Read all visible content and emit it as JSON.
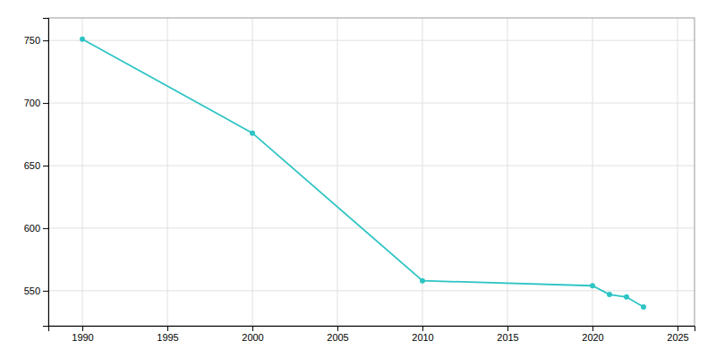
{
  "chart_data": {
    "type": "line",
    "x": [
      1990,
      2000,
      2010,
      2020,
      2021,
      2022,
      2023
    ],
    "values": [
      751,
      676,
      558,
      554,
      547,
      545,
      537
    ],
    "color": "#2EC4C4",
    "marker": "circle",
    "xlim": [
      1988,
      2026
    ],
    "ylim": [
      522,
      768
    ],
    "xticks": [
      1990,
      1995,
      2000,
      2005,
      2010,
      2015,
      2020,
      2025
    ],
    "yticks": [
      550,
      600,
      650,
      700,
      750
    ],
    "grid": true
  }
}
